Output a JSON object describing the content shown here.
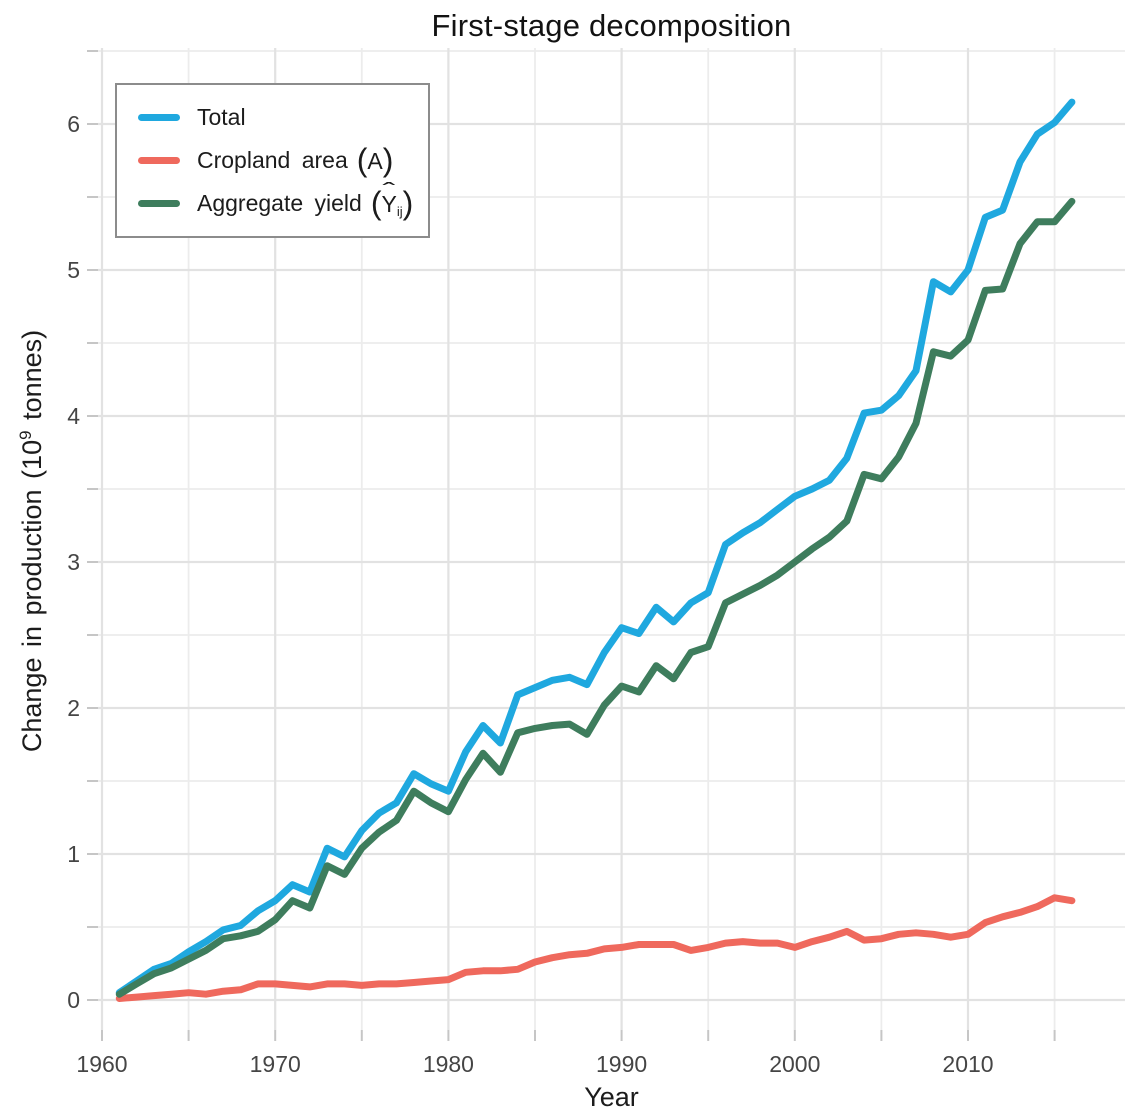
{
  "title": "First-stage decomposition",
  "axes": {
    "x_title": "Year",
    "y_title": {
      "pre": "Change in production (10",
      "sup": "9",
      "post": " tonnes)"
    }
  },
  "legend": {
    "position": "top-left",
    "items": [
      {
        "label": "Total",
        "color": "#1FA8DF",
        "math": {
          "open": "",
          "base": "",
          "hat": "",
          "sub": "",
          "close": ""
        }
      },
      {
        "label": "Cropland area",
        "color": "#EF695D",
        "math": {
          "open": "(",
          "base": "A",
          "hat": "",
          "sub": "",
          "close": ")"
        }
      },
      {
        "label": "Aggregate yield",
        "color": "#3E7D5D",
        "math": {
          "open": "(",
          "base": "Y",
          "hat": "ˆ",
          "sub": "ij",
          "close": ")"
        }
      }
    ]
  },
  "chart_data": {
    "type": "line",
    "title": "First-stage decomposition",
    "xlabel": "Year",
    "ylabel": "Change in production (10^9 tonnes)",
    "grid": true,
    "legend_position": "top-left",
    "xlim": [
      1959.8,
      2019
    ],
    "ylim": [
      -0.2,
      6.5
    ],
    "x_major_ticks": [
      1960,
      1970,
      1980,
      1990,
      2000,
      2010
    ],
    "x_minor_ticks": [
      1965,
      1975,
      1985,
      1995,
      2005,
      2015
    ],
    "y_major_ticks": [
      0,
      1,
      2,
      3,
      4,
      5,
      6
    ],
    "y_minor_ticks": [
      0.5,
      1.5,
      2.5,
      3.5,
      4.5,
      5.5,
      6.5
    ],
    "x": [
      1961,
      1962,
      1963,
      1964,
      1965,
      1966,
      1967,
      1968,
      1969,
      1970,
      1971,
      1972,
      1973,
      1974,
      1975,
      1976,
      1977,
      1978,
      1979,
      1980,
      1981,
      1982,
      1983,
      1984,
      1985,
      1986,
      1987,
      1988,
      1989,
      1990,
      1991,
      1992,
      1993,
      1994,
      1995,
      1996,
      1997,
      1998,
      1999,
      2000,
      2001,
      2002,
      2003,
      2004,
      2005,
      2006,
      2007,
      2008,
      2009,
      2010,
      2011,
      2012,
      2013,
      2014,
      2015,
      2016
    ],
    "series": [
      {
        "name": "Total",
        "color": "#1FA8DF",
        "values": [
          0.05,
          0.13,
          0.21,
          0.25,
          0.33,
          0.4,
          0.48,
          0.51,
          0.61,
          0.68,
          0.79,
          0.74,
          1.04,
          0.98,
          1.16,
          1.28,
          1.35,
          1.55,
          1.48,
          1.43,
          1.7,
          1.88,
          1.76,
          2.09,
          2.14,
          2.19,
          2.21,
          2.16,
          2.38,
          2.55,
          2.51,
          2.69,
          2.59,
          2.72,
          2.79,
          3.12,
          3.2,
          3.27,
          3.36,
          3.45,
          3.5,
          3.56,
          3.71,
          4.02,
          4.04,
          4.14,
          4.31,
          4.92,
          4.85,
          5.0,
          5.36,
          5.41,
          5.74,
          5.93,
          6.01,
          6.15
        ]
      },
      {
        "name": "Cropland area (A)",
        "color": "#EF695D",
        "values": [
          0.01,
          0.02,
          0.03,
          0.04,
          0.05,
          0.04,
          0.06,
          0.07,
          0.11,
          0.11,
          0.1,
          0.09,
          0.11,
          0.11,
          0.1,
          0.11,
          0.11,
          0.12,
          0.13,
          0.14,
          0.19,
          0.2,
          0.2,
          0.21,
          0.26,
          0.29,
          0.31,
          0.32,
          0.35,
          0.36,
          0.38,
          0.38,
          0.38,
          0.34,
          0.36,
          0.39,
          0.4,
          0.39,
          0.39,
          0.36,
          0.4,
          0.43,
          0.47,
          0.41,
          0.42,
          0.45,
          0.46,
          0.45,
          0.43,
          0.45,
          0.53,
          0.57,
          0.6,
          0.64,
          0.7,
          0.68
        ]
      },
      {
        "name": "Aggregate yield (Ŷij)",
        "color": "#3E7D5D",
        "values": [
          0.04,
          0.11,
          0.18,
          0.22,
          0.28,
          0.34,
          0.42,
          0.44,
          0.47,
          0.55,
          0.68,
          0.63,
          0.92,
          0.86,
          1.04,
          1.15,
          1.23,
          1.43,
          1.35,
          1.29,
          1.51,
          1.69,
          1.56,
          1.83,
          1.86,
          1.88,
          1.89,
          1.82,
          2.02,
          2.15,
          2.11,
          2.29,
          2.2,
          2.38,
          2.42,
          2.72,
          2.78,
          2.84,
          2.91,
          3.0,
          3.09,
          3.17,
          3.28,
          3.6,
          3.57,
          3.72,
          3.95,
          4.44,
          4.41,
          4.52,
          4.86,
          4.87,
          5.18,
          5.33,
          5.33,
          5.47
        ]
      }
    ]
  }
}
